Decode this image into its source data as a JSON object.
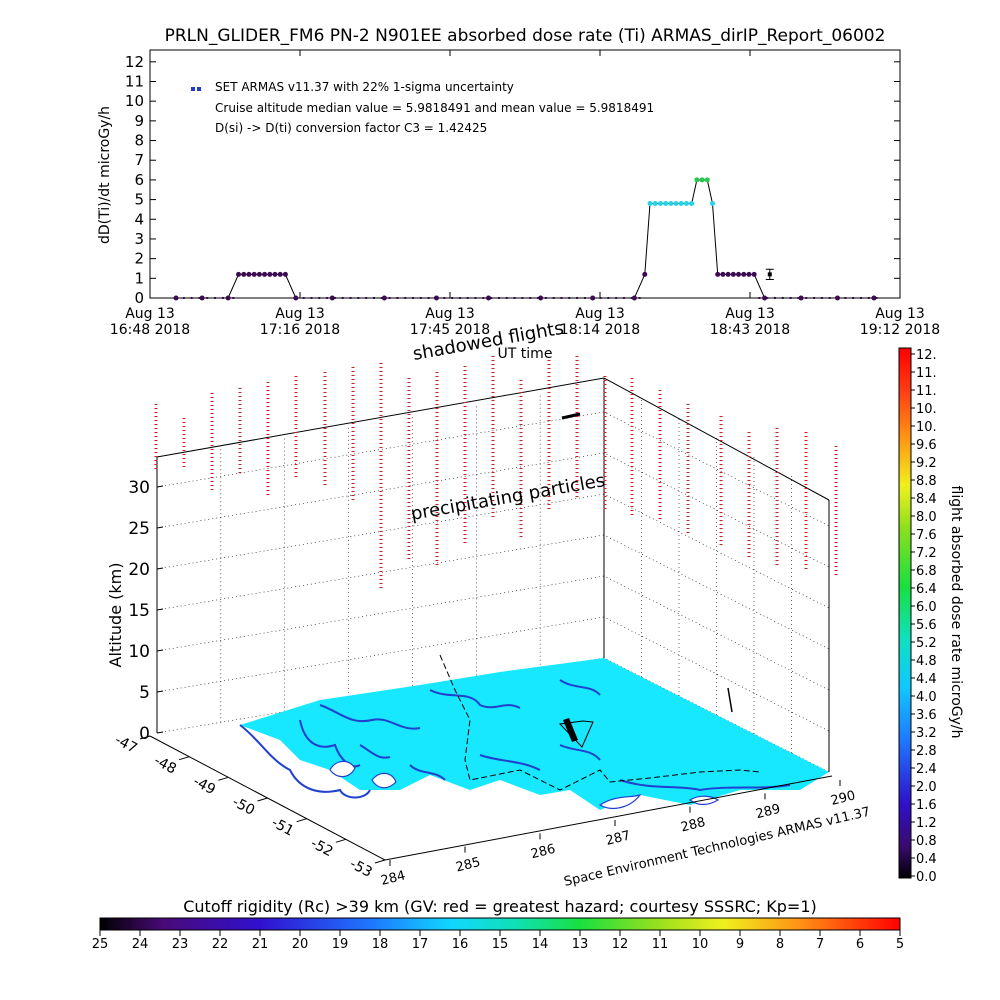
{
  "chart_data": [
    {
      "type": "scatter",
      "title": "PRLN_GLIDER_FM6 PN-2 N901EE absorbed dose rate (Ti) ARMAS_dirIP_Report_06002",
      "ylabel": "dD(Ti)/dt microGy/h",
      "xlabel": "UT time",
      "ylim": [
        0,
        12
      ],
      "y_ticks": [
        "0",
        "1",
        "2",
        "3",
        "4",
        "5",
        "6",
        "7",
        "8",
        "9",
        "10",
        "11",
        "12"
      ],
      "x_ticks": [
        {
          "top": "Aug 13",
          "bottom": "16:48 2018"
        },
        {
          "top": "Aug 13",
          "bottom": "17:16 2018"
        },
        {
          "top": "Aug 13",
          "bottom": "17:45 2018"
        },
        {
          "top": "Aug 13",
          "bottom": "18:14 2018"
        },
        {
          "top": "Aug 13",
          "bottom": "18:43 2018"
        },
        {
          "top": "Aug 13",
          "bottom": "19:12 2018"
        }
      ],
      "legend": [
        "SET ARMAS v11.37 with 22% 1-sigma uncertainty",
        "Cruise altitude median value = 5.9818491 and mean value = 5.9818491",
        "D(si) -> D(ti) conversion factor C3 = 1.42425"
      ],
      "grid": false,
      "x_range_min": [
        0,
        144
      ],
      "series": [
        {
          "points": [
            {
              "t": 5,
              "v": 0
            },
            {
              "t": 10,
              "v": 0
            },
            {
              "t": 15,
              "v": 0
            },
            {
              "t": 17,
              "v": 1.2
            },
            {
              "t": 18,
              "v": 1.2
            },
            {
              "t": 19,
              "v": 1.2
            },
            {
              "t": 20,
              "v": 1.2
            },
            {
              "t": 21,
              "v": 1.2
            },
            {
              "t": 22,
              "v": 1.2
            },
            {
              "t": 23,
              "v": 1.2
            },
            {
              "t": 24,
              "v": 1.2
            },
            {
              "t": 25,
              "v": 1.2
            },
            {
              "t": 26,
              "v": 1.2
            },
            {
              "t": 28,
              "v": 0
            },
            {
              "t": 35,
              "v": 0
            },
            {
              "t": 45,
              "v": 0
            },
            {
              "t": 55,
              "v": 0
            },
            {
              "t": 65,
              "v": 0
            },
            {
              "t": 75,
              "v": 0
            },
            {
              "t": 85,
              "v": 0
            },
            {
              "t": 93,
              "v": 0
            },
            {
              "t": 95,
              "v": 1.2
            },
            {
              "t": 96,
              "v": 4.8
            },
            {
              "t": 97,
              "v": 4.8
            },
            {
              "t": 98,
              "v": 4.8
            },
            {
              "t": 99,
              "v": 4.8
            },
            {
              "t": 100,
              "v": 4.8
            },
            {
              "t": 101,
              "v": 4.8
            },
            {
              "t": 102,
              "v": 4.8
            },
            {
              "t": 103,
              "v": 4.8
            },
            {
              "t": 104,
              "v": 4.8
            },
            {
              "t": 105,
              "v": 6.0
            },
            {
              "t": 106,
              "v": 6.0
            },
            {
              "t": 107,
              "v": 6.0
            },
            {
              "t": 108,
              "v": 4.8
            },
            {
              "t": 109,
              "v": 1.2
            },
            {
              "t": 110,
              "v": 1.2
            },
            {
              "t": 111,
              "v": 1.2
            },
            {
              "t": 112,
              "v": 1.2
            },
            {
              "t": 113,
              "v": 1.2
            },
            {
              "t": 114,
              "v": 1.2
            },
            {
              "t": 115,
              "v": 1.2
            },
            {
              "t": 116,
              "v": 1.2
            },
            {
              "t": 118,
              "v": 0
            },
            {
              "t": 125,
              "v": 0
            },
            {
              "t": 132,
              "v": 0
            },
            {
              "t": 139,
              "v": 0
            }
          ],
          "error_bar": {
            "t": 119,
            "v": 1.2,
            "err": 0.26
          }
        }
      ]
    },
    {
      "type": "scatter",
      "title": "",
      "ylabel": "Altitude (km)",
      "z_ticks": [
        "0",
        "5",
        "10",
        "15",
        "20",
        "25",
        "30"
      ],
      "lat_ticks": [
        "-47",
        "-48",
        "-49",
        "-50",
        "-51",
        "-52",
        "-53"
      ],
      "lon_ticks": [
        "284",
        "285",
        "286",
        "287",
        "288",
        "289",
        "290"
      ],
      "annotations": [
        "shadowed flights",
        "precipitating particles"
      ],
      "credit": "Space Environment Technologies ARMAS v11.37"
    },
    {
      "type": "heatmap",
      "title": "flight absorbed dose rate microGy/h",
      "colorbar_labels": [
        "12.",
        "11.",
        "11.",
        "10.",
        "10.",
        "9.6",
        "9.2",
        "8.8",
        "8.4",
        "8.0",
        "7.6",
        "7.2",
        "6.8",
        "6.4",
        "6.0",
        "5.6",
        "5.2",
        "4.8",
        "4.4",
        "4.0",
        "3.6",
        "3.2",
        "2.8",
        "2.4",
        "2.0",
        "1.6",
        "1.2",
        "0.8",
        "0.4",
        "0.0"
      ]
    },
    {
      "type": "heatmap",
      "title": "Cutoff rigidity (Rc) >39 km (GV: red = greatest hazard; courtesy SSSRC; Kp=1)",
      "colorbar_labels": [
        "25",
        "24",
        "23",
        "22",
        "21",
        "20",
        "19",
        "18",
        "17",
        "16",
        "15",
        "14",
        "13",
        "12",
        "11",
        "10",
        "9",
        "8",
        "7",
        "6",
        "5"
      ]
    }
  ],
  "colors": {
    "low_dose": "#3c0a50",
    "mid_dose": "#28d2e6",
    "high_dose": "#28c850",
    "legend_marker": "#1e3cd2",
    "sea": "#0ff0ff",
    "coast": "#2040d0",
    "particles": "#c82020"
  }
}
